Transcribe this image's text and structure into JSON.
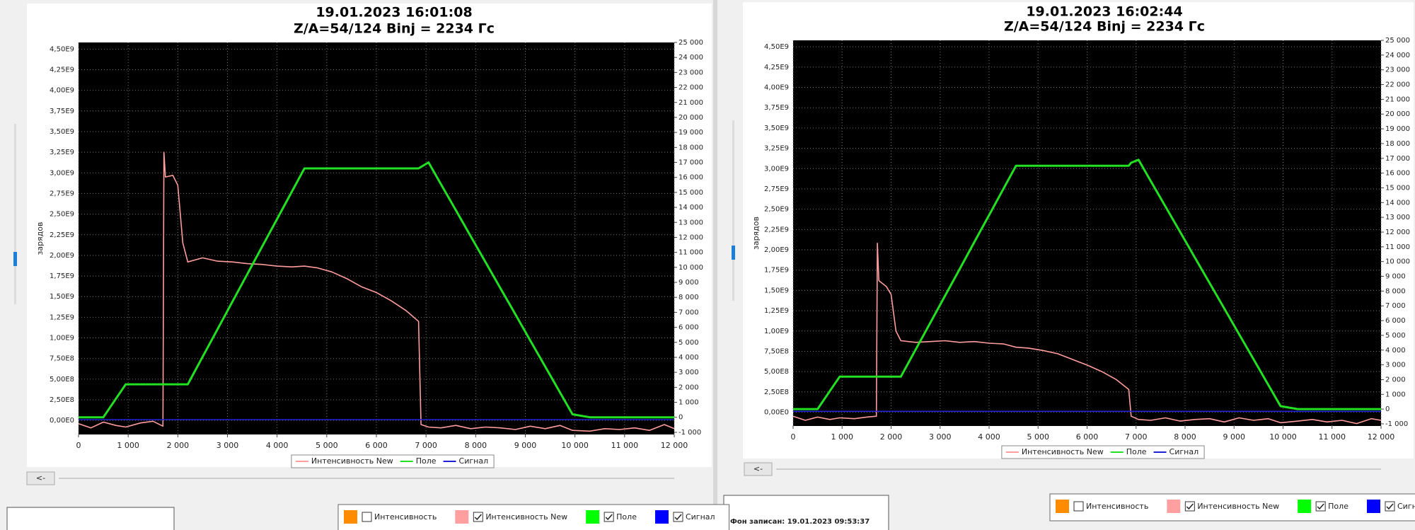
{
  "chart_data": [
    {
      "type": "line",
      "title": "19.01.2023 16:01:08",
      "subtitle": "Z/A=54/124  Binj = 2234 Гс",
      "y_label": "зарядов",
      "x": [
        0,
        250,
        500,
        750,
        950,
        1250,
        1500,
        1700,
        1720,
        1750,
        1900,
        2000,
        2100,
        2200,
        2500,
        2800,
        3100,
        3400,
        3700,
        4000,
        4300,
        4550,
        4800,
        5100,
        5400,
        5700,
        6000,
        6300,
        6600,
        6850,
        6900,
        7050,
        7300,
        7600,
        7900,
        8200,
        8500,
        8800,
        9100,
        9400,
        9700,
        9950,
        10300,
        10600,
        10900,
        11200,
        11500,
        11800,
        12000
      ],
      "series": [
        {
          "name": "Интенсивность New",
          "color": "#ff9c9c",
          "values": [
            -40000000.0,
            -90000000.0,
            -20000000.0,
            -60000000.0,
            -80000000.0,
            -30000000.0,
            -10000000.0,
            -70000000.0,
            3250000000.0,
            2950000000.0,
            2970000000.0,
            2850000000.0,
            2150000000.0,
            1920000000.0,
            1970000000.0,
            1930000000.0,
            1920000000.0,
            1900000000.0,
            1890000000.0,
            1870000000.0,
            1860000000.0,
            1870000000.0,
            1850000000.0,
            1800000000.0,
            1720000000.0,
            1620000000.0,
            1550000000.0,
            1450000000.0,
            1330000000.0,
            1200000000.0,
            -50000000.0,
            -80000000.0,
            -90000000.0,
            -60000000.0,
            -100000000.0,
            -80000000.0,
            -90000000.0,
            -110000000.0,
            -70000000.0,
            -100000000.0,
            -60000000.0,
            -120000000.0,
            -130000000.0,
            -100000000.0,
            -110000000.0,
            -90000000.0,
            -120000000.0,
            -50000000.0,
            -100000000.0
          ]
        },
        {
          "name": "Поле",
          "color": "#22e022",
          "axis": "y2",
          "values": [
            0,
            0,
            0,
            1222,
            2200,
            2200,
            2200,
            2200,
            2200,
            2200,
            2200,
            2200,
            2200,
            2200,
            4038,
            5877,
            7715,
            9554,
            11392,
            13230,
            15068,
            16600,
            16600,
            16600,
            16600,
            16600,
            16600,
            16600,
            16600,
            16600,
            16700,
            17000,
            15552,
            13814,
            12076,
            10338,
            8600,
            6862,
            5124,
            3386,
            1648,
            200,
            0,
            0,
            0,
            0,
            0,
            0,
            0
          ]
        },
        {
          "name": "Сигнал",
          "color": "#2020d8",
          "values": [
            10000000.0,
            10000000.0,
            10000000.0,
            10000000.0,
            10000000.0,
            10000000.0,
            10000000.0,
            10000000.0,
            10000000.0,
            10000000.0,
            10000000.0,
            10000000.0,
            10000000.0,
            10000000.0,
            10000000.0,
            10000000.0,
            10000000.0,
            10000000.0,
            10000000.0,
            10000000.0,
            10000000.0,
            10000000.0,
            10000000.0,
            10000000.0,
            10000000.0,
            10000000.0,
            10000000.0,
            10000000.0,
            10000000.0,
            10000000.0,
            10000000.0,
            10000000.0,
            10000000.0,
            10000000.0,
            10000000.0,
            10000000.0,
            10000000.0,
            10000000.0,
            10000000.0,
            10000000.0,
            10000000.0,
            10000000.0,
            10000000.0,
            10000000.0,
            10000000.0,
            10000000.0,
            10000000.0,
            10000000.0,
            10000000.0
          ]
        }
      ],
      "xlim": [
        0,
        12000
      ],
      "xticks": [
        0,
        {
          "value": 1000,
          "label": "1 000"
        },
        {
          "value": 2000,
          "label": "2 000"
        },
        {
          "value": 3000,
          "label": "3 000"
        },
        {
          "value": 4000,
          "label": "4 000"
        },
        {
          "value": 5000,
          "label": "5 000"
        },
        {
          "value": 6000,
          "label": "6 000"
        },
        {
          "value": 7000,
          "label": "7 000"
        },
        {
          "value": 8000,
          "label": "8 000"
        },
        {
          "value": 9000,
          "label": "9 000"
        },
        {
          "value": 10000,
          "label": "10 000"
        },
        {
          "value": 11000,
          "label": "11 000"
        },
        {
          "value": 12000,
          "label": "12 000"
        }
      ],
      "ylim": [
        -170000000.0,
        4580000000.0
      ],
      "yticks": [
        {
          "value": 0,
          "label": "0,00E0"
        },
        {
          "value": 250000000.0,
          "label": "2,50E8"
        },
        {
          "value": 500000000.0,
          "label": "5,00E8"
        },
        {
          "value": 750000000.0,
          "label": "7,50E8"
        },
        {
          "value": 1000000000.0,
          "label": "1,00E9"
        },
        {
          "value": 1250000000.0,
          "label": "1,25E9"
        },
        {
          "value": 1500000000.0,
          "label": "1,50E9"
        },
        {
          "value": 1750000000.0,
          "label": "1,75E9"
        },
        {
          "value": 2000000000.0,
          "label": "2,00E9"
        },
        {
          "value": 2250000000.0,
          "label": "2,25E9"
        },
        {
          "value": 2500000000.0,
          "label": "2,50E9"
        },
        {
          "value": 2750000000.0,
          "label": "2,75E9"
        },
        {
          "value": 3000000000.0,
          "label": "3,00E9"
        },
        {
          "value": 3250000000.0,
          "label": "3,25E9"
        },
        {
          "value": 3500000000.0,
          "label": "3,50E9"
        },
        {
          "value": 3750000000.0,
          "label": "3,75E9"
        },
        {
          "value": 4000000000.0,
          "label": "4,00E9"
        },
        {
          "value": 4250000000.0,
          "label": "4,25E9"
        },
        {
          "value": 4500000000.0,
          "label": "4,50E9"
        }
      ],
      "y2lim": [
        -1145,
        25000
      ],
      "y2ticks": [
        {
          "value": -1000,
          "label": "-1 000"
        },
        0,
        {
          "value": 1000,
          "label": "1 000"
        },
        {
          "value": 2000,
          "label": "2 000"
        },
        {
          "value": 3000,
          "label": "3 000"
        },
        {
          "value": 4000,
          "label": "4 000"
        },
        {
          "value": 5000,
          "label": "5 000"
        },
        {
          "value": 6000,
          "label": "6 000"
        },
        {
          "value": 7000,
          "label": "7 000"
        },
        {
          "value": 8000,
          "label": "8 000"
        },
        {
          "value": 9000,
          "label": "9 000"
        },
        {
          "value": 10000,
          "label": "10 000"
        },
        {
          "value": 11000,
          "label": "11 000"
        },
        {
          "value": 12000,
          "label": "12 000"
        },
        {
          "value": 13000,
          "label": "13 000"
        },
        {
          "value": 14000,
          "label": "14 000"
        },
        {
          "value": 15000,
          "label": "15 000"
        },
        {
          "value": 16000,
          "label": "16 000"
        },
        {
          "value": 17000,
          "label": "17 000"
        },
        {
          "value": 18000,
          "label": "18 000"
        },
        {
          "value": 19000,
          "label": "19 000"
        },
        {
          "value": 20000,
          "label": "20 000"
        },
        {
          "value": 21000,
          "label": "21 000"
        },
        {
          "value": 22000,
          "label": "22 000"
        },
        {
          "value": 23000,
          "label": "23 000"
        },
        {
          "value": 24000,
          "label": "24 000"
        },
        {
          "value": 25000,
          "label": "25 000"
        }
      ],
      "grid": true,
      "legend": "bottom"
    },
    {
      "type": "line",
      "title": "19.01.2023 16:02:44",
      "subtitle": "Z/A=54/124  Binj = 2234 Гс",
      "y_label": "зарядов",
      "x": [
        0,
        250,
        500,
        750,
        950,
        1250,
        1500,
        1700,
        1720,
        1750,
        1900,
        2000,
        2100,
        2200,
        2500,
        2800,
        3100,
        3400,
        3700,
        4000,
        4300,
        4550,
        4800,
        5100,
        5400,
        5700,
        6000,
        6300,
        6600,
        6850,
        6900,
        7050,
        7300,
        7600,
        7900,
        8200,
        8500,
        8800,
        9100,
        9400,
        9700,
        9950,
        10300,
        10600,
        10900,
        11200,
        11500,
        11800,
        12000
      ],
      "series": [
        {
          "name": "Интенсивность New",
          "color": "#ff9c9c",
          "values": [
            -50000000.0,
            -100000000.0,
            -60000000.0,
            -90000000.0,
            -70000000.0,
            -80000000.0,
            -60000000.0,
            -50000000.0,
            2080000000.0,
            1620000000.0,
            1550000000.0,
            1450000000.0,
            1000000000.0,
            880000000.0,
            860000000.0,
            870000000.0,
            880000000.0,
            860000000.0,
            870000000.0,
            850000000.0,
            840000000.0,
            800000000.0,
            790000000.0,
            760000000.0,
            720000000.0,
            650000000.0,
            580000000.0,
            500000000.0,
            400000000.0,
            280000000.0,
            -50000000.0,
            -90000000.0,
            -100000000.0,
            -70000000.0,
            -110000000.0,
            -90000000.0,
            -80000000.0,
            -120000000.0,
            -70000000.0,
            -100000000.0,
            -80000000.0,
            -130000000.0,
            -110000000.0,
            -90000000.0,
            -120000000.0,
            -100000000.0,
            -140000000.0,
            -80000000.0,
            -100000000.0
          ]
        },
        {
          "name": "Поле",
          "color": "#22e022",
          "axis": "y2",
          "values": [
            0,
            0,
            0,
            1222,
            2200,
            2200,
            2200,
            2200,
            2200,
            2200,
            2200,
            2200,
            2200,
            2200,
            4026,
            5851,
            7677,
            9502,
            11328,
            13153,
            14979,
            16500,
            16500,
            16500,
            16500,
            16500,
            16500,
            16500,
            16500,
            16500,
            16700,
            16900,
            15460,
            13733,
            12005,
            10277,
            8549,
            6821,
            5093,
            3366,
            1638,
            200,
            0,
            0,
            0,
            0,
            0,
            0,
            0
          ]
        },
        {
          "name": "Сигнал",
          "color": "#2020d8",
          "values": [
            10000000.0,
            10000000.0,
            10000000.0,
            10000000.0,
            10000000.0,
            10000000.0,
            10000000.0,
            10000000.0,
            10000000.0,
            10000000.0,
            10000000.0,
            10000000.0,
            10000000.0,
            10000000.0,
            10000000.0,
            10000000.0,
            10000000.0,
            10000000.0,
            10000000.0,
            10000000.0,
            10000000.0,
            10000000.0,
            10000000.0,
            10000000.0,
            10000000.0,
            10000000.0,
            10000000.0,
            10000000.0,
            10000000.0,
            10000000.0,
            10000000.0,
            10000000.0,
            10000000.0,
            10000000.0,
            10000000.0,
            10000000.0,
            10000000.0,
            10000000.0,
            10000000.0,
            10000000.0,
            10000000.0,
            10000000.0,
            10000000.0,
            10000000.0,
            10000000.0,
            10000000.0,
            10000000.0,
            10000000.0,
            10000000.0
          ]
        }
      ],
      "xlim": [
        0,
        12000
      ],
      "xticks": [
        0,
        {
          "value": 1000,
          "label": "1 000"
        },
        {
          "value": 2000,
          "label": "2 000"
        },
        {
          "value": 3000,
          "label": "3 000"
        },
        {
          "value": 4000,
          "label": "4 000"
        },
        {
          "value": 5000,
          "label": "5 000"
        },
        {
          "value": 6000,
          "label": "6 000"
        },
        {
          "value": 7000,
          "label": "7 000"
        },
        {
          "value": 8000,
          "label": "8 000"
        },
        {
          "value": 9000,
          "label": "9 000"
        },
        {
          "value": 10000,
          "label": "10 000"
        },
        {
          "value": 11000,
          "label": "11 000"
        },
        {
          "value": 12000,
          "label": "12 000"
        }
      ],
      "ylim": [
        -170000000.0,
        4580000000.0
      ],
      "yticks": [
        {
          "value": 0,
          "label": "0,00E0"
        },
        {
          "value": 250000000.0,
          "label": "2,50E8"
        },
        {
          "value": 500000000.0,
          "label": "5,00E8"
        },
        {
          "value": 750000000.0,
          "label": "7,50E8"
        },
        {
          "value": 1000000000.0,
          "label": "1,00E9"
        },
        {
          "value": 1250000000.0,
          "label": "1,25E9"
        },
        {
          "value": 1500000000.0,
          "label": "1,50E9"
        },
        {
          "value": 1750000000.0,
          "label": "1,75E9"
        },
        {
          "value": 2000000000.0,
          "label": "2,00E9"
        },
        {
          "value": 2250000000.0,
          "label": "2,25E9"
        },
        {
          "value": 2500000000.0,
          "label": "2,50E9"
        },
        {
          "value": 2750000000.0,
          "label": "2,75E9"
        },
        {
          "value": 3000000000.0,
          "label": "3,00E9"
        },
        {
          "value": 3250000000.0,
          "label": "3,25E9"
        },
        {
          "value": 3500000000.0,
          "label": "3,50E9"
        },
        {
          "value": 3750000000.0,
          "label": "3,75E9"
        },
        {
          "value": 4000000000.0,
          "label": "4,00E9"
        },
        {
          "value": 4250000000.0,
          "label": "4,25E9"
        },
        {
          "value": 4500000000.0,
          "label": "4,50E9"
        }
      ],
      "y2lim": [
        -1145,
        25000
      ],
      "y2ticks": [
        {
          "value": -1000,
          "label": "-1 000"
        },
        0,
        {
          "value": 1000,
          "label": "1 000"
        },
        {
          "value": 2000,
          "label": "2 000"
        },
        {
          "value": 3000,
          "label": "3 000"
        },
        {
          "value": 4000,
          "label": "4 000"
        },
        {
          "value": 5000,
          "label": "5 000"
        },
        {
          "value": 6000,
          "label": "6 000"
        },
        {
          "value": 7000,
          "label": "7 000"
        },
        {
          "value": 8000,
          "label": "8 000"
        },
        {
          "value": 9000,
          "label": "9 000"
        },
        {
          "value": 10000,
          "label": "10 000"
        },
        {
          "value": 11000,
          "label": "11 000"
        },
        {
          "value": 12000,
          "label": "12 000"
        },
        {
          "value": 13000,
          "label": "13 000"
        },
        {
          "value": 14000,
          "label": "14 000"
        },
        {
          "value": 15000,
          "label": "15 000"
        },
        {
          "value": 16000,
          "label": "16 000"
        },
        {
          "value": 17000,
          "label": "17 000"
        },
        {
          "value": 18000,
          "label": "18 000"
        },
        {
          "value": 19000,
          "label": "19 000"
        },
        {
          "value": 20000,
          "label": "20 000"
        },
        {
          "value": 21000,
          "label": "21 000"
        },
        {
          "value": 22000,
          "label": "22 000"
        },
        {
          "value": 23000,
          "label": "23 000"
        },
        {
          "value": 24000,
          "label": "24 000"
        },
        {
          "value": 25000,
          "label": "25 000"
        }
      ],
      "grid": true,
      "legend": "bottom"
    }
  ],
  "panels": [
    {
      "back_button": "<-",
      "checks": [
        {
          "label": "Интенсивность",
          "color": "#ff8c00",
          "checked": false
        },
        {
          "label": "Интенсивность New",
          "color": "#ff9f9f",
          "checked": true
        },
        {
          "label": "Поле",
          "color": "#00ff00",
          "checked": true
        },
        {
          "label": "Сигнал",
          "color": "#0000ff",
          "checked": true
        }
      ]
    },
    {
      "back_button": "<-",
      "background_recorded": "Фон записан: 19.01.2023 09:53:37",
      "checks": [
        {
          "label": "Интенсивность",
          "color": "#ff8c00",
          "checked": false
        },
        {
          "label": "Интенсивность New",
          "color": "#ff9f9f",
          "checked": true
        },
        {
          "label": "Поле",
          "color": "#00ff00",
          "checked": true
        },
        {
          "label": "Сигнал",
          "color": "#0000ff",
          "checked": true
        }
      ]
    }
  ]
}
